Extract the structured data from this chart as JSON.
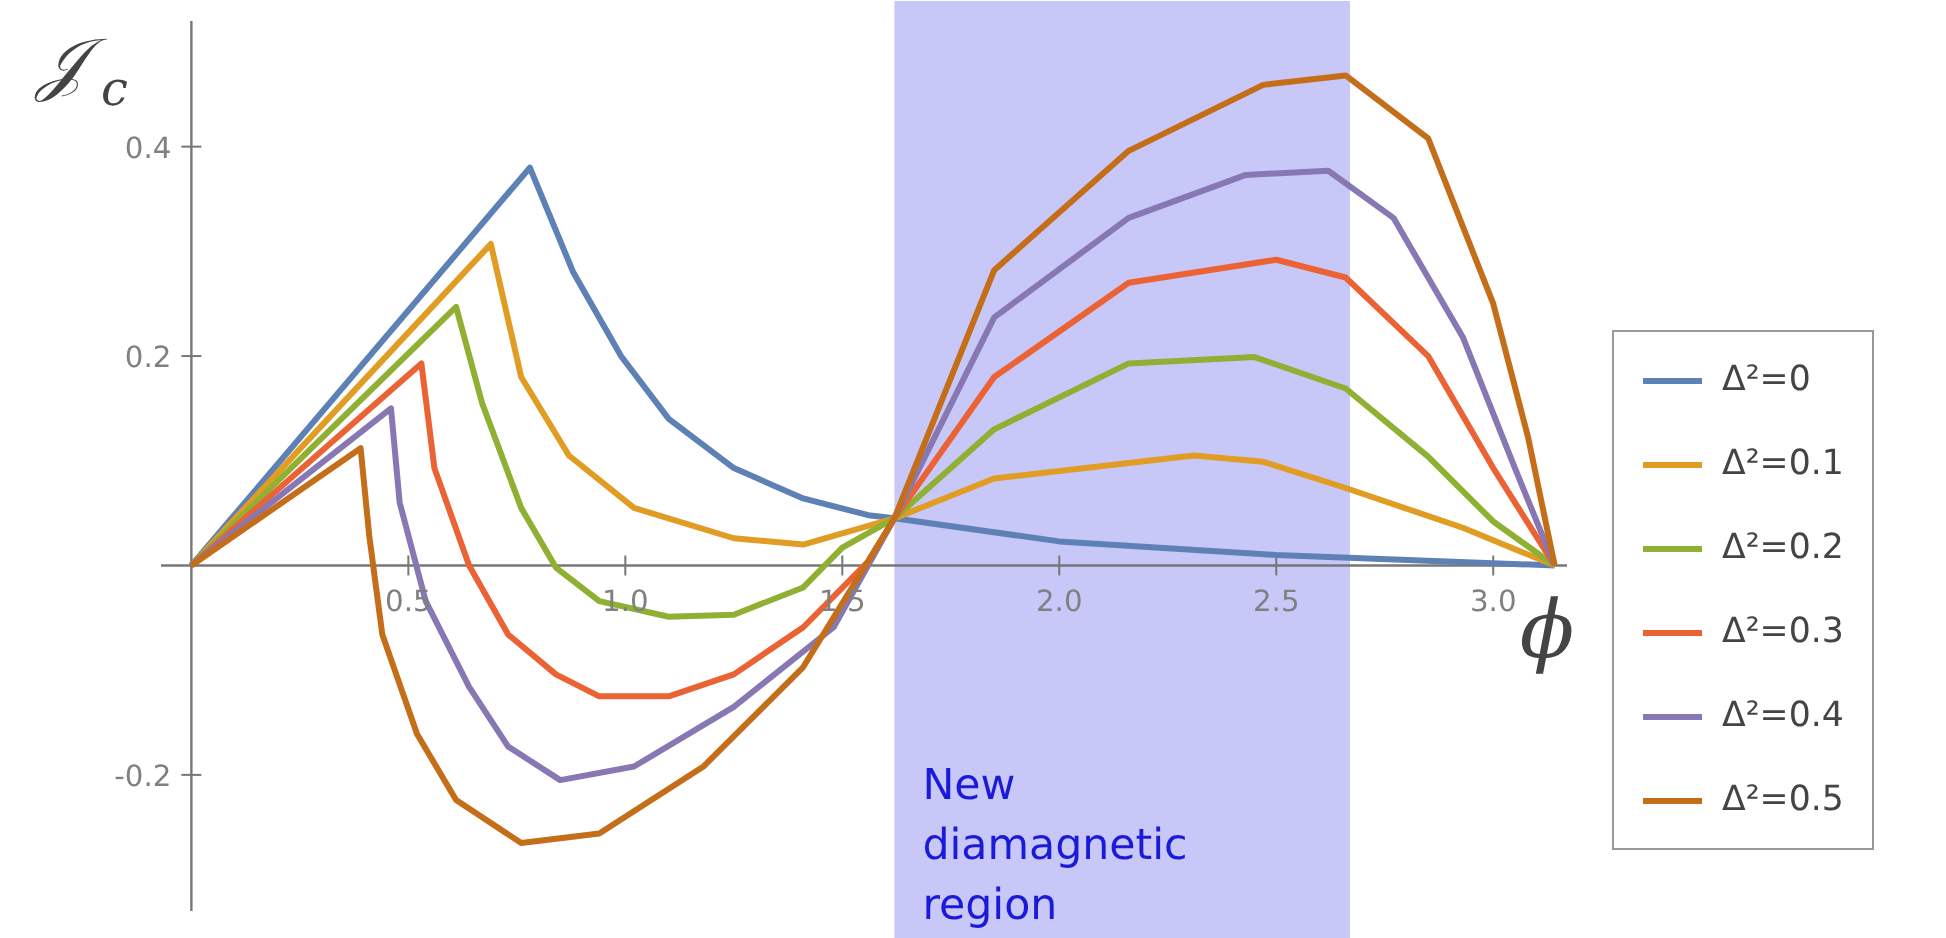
{
  "chart_data": {
    "type": "line",
    "xlabel": "ϕ",
    "ylabel": "𝒥$_{c}$",
    "xlim": [
      -0.07,
      3.17
    ],
    "ylim": [
      -0.33,
      0.52
    ],
    "xticks": [
      {
        "value": 0.5,
        "label": "0.5"
      },
      {
        "value": 1.0,
        "label": "1.0"
      },
      {
        "value": 1.5,
        "label": "1.5"
      },
      {
        "value": 2.0,
        "label": "2.0"
      },
      {
        "value": 2.5,
        "label": "2.5"
      },
      {
        "value": 3.0,
        "label": "3.0"
      }
    ],
    "yticks": [
      -0.2,
      0.2,
      0.4
    ],
    "grid": false,
    "legend": "right",
    "line_style": "solid",
    "marker": "none",
    "bands": [
      {
        "axis": "x",
        "from": 1.62,
        "to": 2.67,
        "label": "New\ndiamagnetic\nregion",
        "color": "#c8c8f8"
      }
    ],
    "series": [
      {
        "name": "Δ²=0",
        "color": "#5e81b5",
        "x": [
          0,
          0.78,
          0.88,
          0.99,
          1.1,
          1.25,
          1.41,
          1.56,
          1.62,
          2.0,
          2.5,
          3.1416
        ],
        "values": [
          0,
          0.38,
          0.28,
          0.2,
          0.14,
          0.093,
          0.064,
          0.048,
          0.045,
          0.023,
          0.01,
          0
        ]
      },
      {
        "name": "Δ²=0.1",
        "color": "#e19c24",
        "x": [
          0,
          0.69,
          0.76,
          0.87,
          1.02,
          1.25,
          1.41,
          1.62,
          1.85,
          2.31,
          2.47,
          2.66,
          2.93,
          3.1416
        ],
        "values": [
          0,
          0.307,
          0.18,
          0.105,
          0.055,
          0.026,
          0.02,
          0.045,
          0.083,
          0.105,
          0.099,
          0.074,
          0.036,
          0
        ]
      },
      {
        "name": "Δ²=0.2",
        "color": "#8fb032",
        "x": [
          0,
          0.61,
          0.67,
          0.76,
          0.84,
          0.94,
          1.1,
          1.25,
          1.41,
          1.5,
          1.62,
          1.85,
          2.16,
          2.45,
          2.66,
          2.85,
          3.0,
          3.1416
        ],
        "values": [
          0,
          0.247,
          0.155,
          0.055,
          -0.002,
          -0.034,
          -0.049,
          -0.047,
          -0.021,
          0.017,
          0.045,
          0.13,
          0.193,
          0.199,
          0.169,
          0.104,
          0.042,
          0
        ]
      },
      {
        "name": "Δ²=0.3",
        "color": "#eb6235",
        "x": [
          0,
          0.53,
          0.56,
          0.64,
          0.73,
          0.84,
          0.94,
          1.1,
          1.25,
          1.41,
          1.56,
          1.62,
          1.85,
          2.16,
          2.5,
          2.66,
          2.85,
          3.0,
          3.1416
        ],
        "values": [
          0,
          0.193,
          0.093,
          0,
          -0.066,
          -0.104,
          -0.125,
          -0.125,
          -0.104,
          -0.059,
          0.004,
          0.045,
          0.18,
          0.27,
          0.292,
          0.275,
          0.2,
          0.093,
          0
        ]
      },
      {
        "name": "Δ²=0.4",
        "color": "#8778b3",
        "x": [
          0,
          0.46,
          0.48,
          0.54,
          0.64,
          0.73,
          0.85,
          1.02,
          1.25,
          1.48,
          1.62,
          1.85,
          2.16,
          2.43,
          2.62,
          2.77,
          2.93,
          3.05,
          3.1416
        ],
        "values": [
          0,
          0.15,
          0.06,
          -0.034,
          -0.116,
          -0.173,
          -0.205,
          -0.192,
          -0.135,
          -0.059,
          0.045,
          0.237,
          0.332,
          0.373,
          0.377,
          0.332,
          0.218,
          0.093,
          0
        ]
      },
      {
        "name": "Δ²=0.5",
        "color": "#c56e1a",
        "x": [
          0,
          0.39,
          0.41,
          0.44,
          0.52,
          0.61,
          0.76,
          0.94,
          1.18,
          1.41,
          1.62,
          1.85,
          2.16,
          2.47,
          2.66,
          2.85,
          3.0,
          3.08,
          3.1416
        ],
        "values": [
          0,
          0.112,
          0.028,
          -0.066,
          -0.161,
          -0.224,
          -0.265,
          -0.256,
          -0.192,
          -0.097,
          0.045,
          0.282,
          0.396,
          0.459,
          0.468,
          0.408,
          0.25,
          0.123,
          0
        ]
      }
    ]
  }
}
